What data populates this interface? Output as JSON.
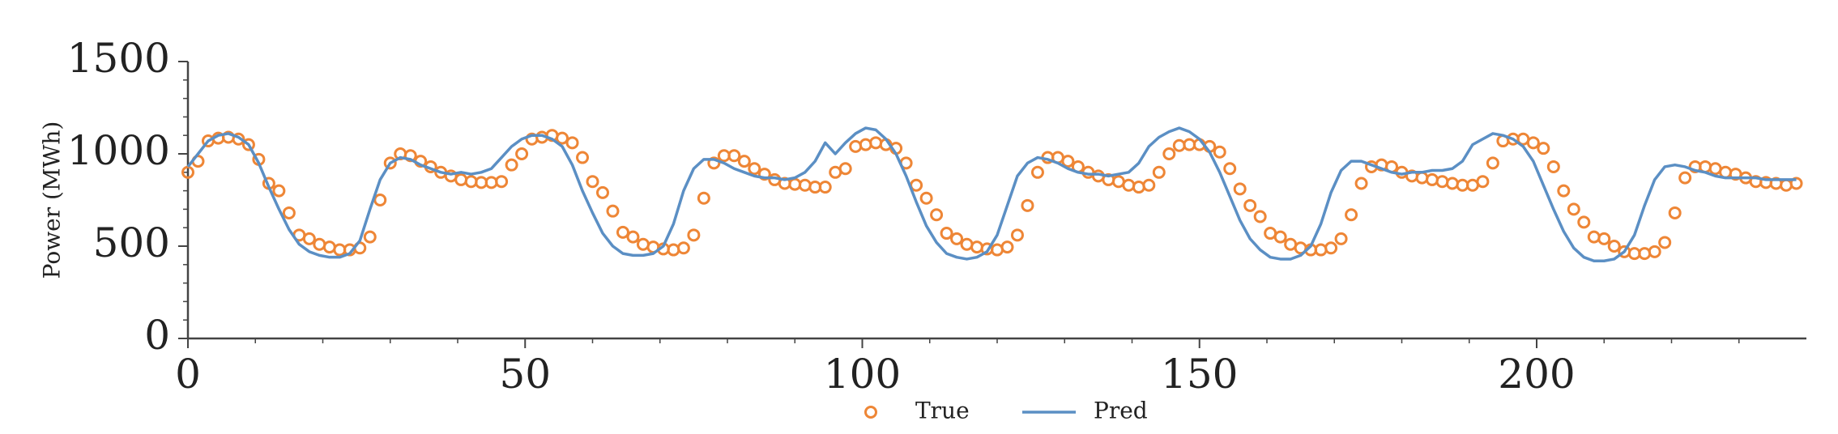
{
  "chart_data": {
    "type": "line_scatter",
    "ylabel": "Power (MWh)",
    "xlim": [
      0,
      240
    ],
    "xticks": [
      0,
      50,
      100,
      150,
      200
    ],
    "xminorticks": [
      10,
      20,
      30,
      40,
      60,
      70,
      80,
      90,
      110,
      120,
      130,
      140,
      160,
      170,
      180,
      190,
      210,
      220,
      230
    ],
    "ylim": [
      0,
      1500
    ],
    "yticks": [
      0,
      500,
      1000,
      1500
    ],
    "yminorticks": [
      100,
      200,
      300,
      400,
      600,
      700,
      800,
      900,
      1100,
      1200,
      1300,
      1400
    ],
    "legend": "lower center",
    "x": [
      0,
      1.5,
      3,
      4.5,
      6,
      7.5,
      9,
      10.5,
      12,
      13.5,
      15,
      16.5,
      18,
      19.5,
      21,
      22.5,
      24,
      25.5,
      27,
      28.5,
      30,
      31.5,
      33,
      34.5,
      36,
      37.5,
      39,
      40.5,
      42,
      43.5,
      45,
      46.5,
      48,
      49.5,
      51,
      52.5,
      54,
      55.5,
      57,
      58.5,
      60,
      61.5,
      63,
      64.5,
      66,
      67.5,
      69,
      70.5,
      72,
      73.5,
      75,
      76.5,
      78,
      79.5,
      81,
      82.5,
      84,
      85.5,
      87,
      88.5,
      90,
      91.5,
      93,
      94.5,
      96,
      97.5,
      99,
      100.5,
      102,
      103.5,
      105,
      106.5,
      108,
      109.5,
      111,
      112.5,
      114,
      115.5,
      117,
      118.5,
      120,
      121.5,
      123,
      124.5,
      126,
      127.5,
      129,
      130.5,
      132,
      133.5,
      135,
      136.5,
      138,
      139.5,
      141,
      142.5,
      144,
      145.5,
      147,
      148.5,
      150,
      151.5,
      153,
      154.5,
      156,
      157.5,
      159,
      160.5,
      162,
      163.5,
      165,
      166.5,
      168,
      169.5,
      171,
      172.5,
      174,
      175.5,
      177,
      178.5,
      180,
      181.5,
      183,
      184.5,
      186,
      187.5,
      189,
      190.5,
      192,
      193.5,
      195,
      196.5,
      198,
      199.5,
      201,
      202.5,
      204,
      205.5,
      207,
      208.5,
      210,
      211.5,
      213,
      214.5,
      216,
      217.5,
      219,
      220.5,
      222,
      223.5,
      225,
      226.5,
      228,
      229.5,
      231,
      232.5,
      234,
      235.5,
      237,
      238.5
    ],
    "series": [
      {
        "name": "True",
        "style": "marker",
        "color": "#ee8636",
        "values": [
          900,
          960,
          1070,
          1085,
          1090,
          1080,
          1050,
          970,
          840,
          800,
          680,
          560,
          540,
          510,
          495,
          480,
          480,
          490,
          550,
          750,
          950,
          1000,
          990,
          960,
          930,
          900,
          880,
          860,
          850,
          845,
          845,
          850,
          940,
          1000,
          1080,
          1090,
          1100,
          1085,
          1060,
          980,
          850,
          790,
          690,
          575,
          550,
          510,
          495,
          485,
          480,
          490,
          560,
          760,
          950,
          990,
          990,
          960,
          920,
          890,
          860,
          840,
          835,
          830,
          820,
          820,
          900,
          920,
          1040,
          1050,
          1060,
          1050,
          1030,
          950,
          830,
          760,
          670,
          570,
          540,
          510,
          495,
          485,
          480,
          495,
          560,
          720,
          900,
          980,
          980,
          960,
          930,
          900,
          880,
          860,
          850,
          830,
          820,
          830,
          900,
          1000,
          1045,
          1050,
          1050,
          1040,
          1010,
          920,
          810,
          720,
          660,
          570,
          550,
          510,
          490,
          480,
          480,
          490,
          540,
          670,
          840,
          930,
          940,
          930,
          900,
          880,
          870,
          860,
          850,
          840,
          830,
          830,
          850,
          950,
          1070,
          1080,
          1080,
          1060,
          1030,
          930,
          800,
          700,
          630,
          550,
          540,
          500,
          470,
          460,
          460,
          470,
          520,
          680,
          870,
          930,
          930,
          920,
          900,
          890,
          870,
          850,
          845,
          840,
          830,
          840
        ]
      },
      {
        "name": "Pred",
        "style": "line",
        "color": "#5b8fc4",
        "values": [
          930,
          1000,
          1070,
          1100,
          1110,
          1090,
          1050,
          950,
          820,
          700,
          590,
          510,
          470,
          450,
          440,
          440,
          460,
          530,
          700,
          860,
          950,
          980,
          970,
          940,
          920,
          900,
          890,
          900,
          890,
          900,
          920,
          980,
          1040,
          1080,
          1100,
          1100,
          1080,
          1040,
          940,
          800,
          680,
          570,
          500,
          460,
          450,
          450,
          460,
          500,
          620,
          800,
          920,
          970,
          970,
          950,
          920,
          900,
          880,
          870,
          870,
          860,
          870,
          900,
          960,
          1060,
          1000,
          1060,
          1110,
          1140,
          1130,
          1080,
          1000,
          880,
          740,
          610,
          520,
          460,
          440,
          430,
          440,
          470,
          560,
          720,
          880,
          950,
          980,
          970,
          950,
          920,
          900,
          890,
          890,
          880,
          890,
          900,
          950,
          1040,
          1090,
          1120,
          1140,
          1120,
          1080,
          1010,
          900,
          770,
          640,
          540,
          480,
          440,
          430,
          430,
          450,
          500,
          620,
          790,
          910,
          960,
          960,
          940,
          920,
          900,
          890,
          900,
          900,
          910,
          910,
          920,
          960,
          1050,
          1080,
          1110,
          1100,
          1080,
          1040,
          960,
          830,
          700,
          580,
          490,
          440,
          420,
          420,
          430,
          470,
          560,
          720,
          860,
          930,
          940,
          930,
          910,
          900,
          880,
          870,
          870,
          870,
          870,
          860,
          860,
          860,
          860
        ]
      }
    ]
  }
}
